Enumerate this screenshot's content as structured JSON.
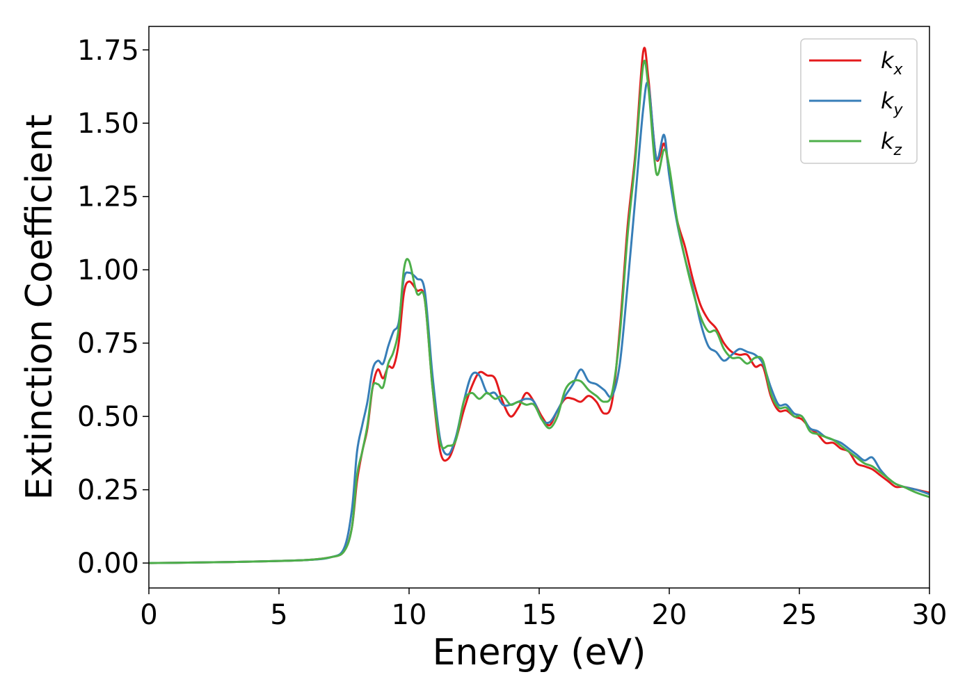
{
  "chart_data": {
    "type": "line",
    "title": "",
    "xlabel": "Energy (eV)",
    "ylabel": "Extinction Coefficient",
    "xlim": [
      0,
      30
    ],
    "ylim": [
      -0.085,
      1.83
    ],
    "x_ticks": [
      0,
      5,
      10,
      15,
      20,
      25,
      30
    ],
    "x_tick_labels": [
      "0",
      "5",
      "10",
      "15",
      "20",
      "25",
      "30"
    ],
    "y_ticks": [
      0.0,
      0.25,
      0.5,
      0.75,
      1.0,
      1.25,
      1.5,
      1.75
    ],
    "y_tick_labels": [
      "0.00",
      "0.25",
      "0.50",
      "0.75",
      "1.00",
      "1.25",
      "1.50",
      "1.75"
    ],
    "grid": false,
    "legend_position": "top-right",
    "series": [
      {
        "name": "k_x",
        "legend_main": "k",
        "legend_sub": "x",
        "color": "#e41a1c",
        "points": [
          [
            0,
            0
          ],
          [
            2,
            0.002
          ],
          [
            4,
            0.005
          ],
          [
            6,
            0.01
          ],
          [
            7,
            0.02
          ],
          [
            7.5,
            0.04
          ],
          [
            7.8,
            0.12
          ],
          [
            8,
            0.28
          ],
          [
            8.2,
            0.38
          ],
          [
            8.4,
            0.46
          ],
          [
            8.6,
            0.6
          ],
          [
            8.8,
            0.66
          ],
          [
            9,
            0.63
          ],
          [
            9.2,
            0.67
          ],
          [
            9.4,
            0.67
          ],
          [
            9.6,
            0.75
          ],
          [
            9.8,
            0.92
          ],
          [
            10,
            0.96
          ],
          [
            10.3,
            0.93
          ],
          [
            10.6,
            0.9
          ],
          [
            10.9,
            0.6
          ],
          [
            11.2,
            0.38
          ],
          [
            11.5,
            0.355
          ],
          [
            11.8,
            0.42
          ],
          [
            12.1,
            0.52
          ],
          [
            12.4,
            0.6
          ],
          [
            12.7,
            0.65
          ],
          [
            13,
            0.64
          ],
          [
            13.3,
            0.63
          ],
          [
            13.6,
            0.55
          ],
          [
            13.9,
            0.5
          ],
          [
            14.2,
            0.53
          ],
          [
            14.5,
            0.58
          ],
          [
            14.8,
            0.55
          ],
          [
            15.1,
            0.5
          ],
          [
            15.4,
            0.47
          ],
          [
            15.7,
            0.52
          ],
          [
            16,
            0.56
          ],
          [
            16.3,
            0.56
          ],
          [
            16.6,
            0.55
          ],
          [
            16.9,
            0.57
          ],
          [
            17.2,
            0.55
          ],
          [
            17.5,
            0.51
          ],
          [
            17.8,
            0.55
          ],
          [
            18.1,
            0.8
          ],
          [
            18.4,
            1.15
          ],
          [
            18.7,
            1.4
          ],
          [
            19,
            1.745
          ],
          [
            19.2,
            1.65
          ],
          [
            19.5,
            1.38
          ],
          [
            19.8,
            1.43
          ],
          [
            20,
            1.33
          ],
          [
            20.3,
            1.17
          ],
          [
            20.6,
            1.08
          ],
          [
            20.9,
            0.97
          ],
          [
            21.2,
            0.88
          ],
          [
            21.5,
            0.83
          ],
          [
            21.8,
            0.8
          ],
          [
            22.1,
            0.75
          ],
          [
            22.4,
            0.72
          ],
          [
            22.7,
            0.71
          ],
          [
            23,
            0.71
          ],
          [
            23.3,
            0.67
          ],
          [
            23.6,
            0.67
          ],
          [
            23.9,
            0.57
          ],
          [
            24.2,
            0.52
          ],
          [
            24.5,
            0.52
          ],
          [
            24.8,
            0.5
          ],
          [
            25.1,
            0.49
          ],
          [
            25.4,
            0.46
          ],
          [
            25.7,
            0.44
          ],
          [
            26,
            0.41
          ],
          [
            26.3,
            0.41
          ],
          [
            26.6,
            0.39
          ],
          [
            26.9,
            0.38
          ],
          [
            27.2,
            0.34
          ],
          [
            27.5,
            0.33
          ],
          [
            27.8,
            0.32
          ],
          [
            28.1,
            0.3
          ],
          [
            28.4,
            0.28
          ],
          [
            28.7,
            0.26
          ],
          [
            29,
            0.26
          ],
          [
            29.5,
            0.25
          ],
          [
            30,
            0.24
          ]
        ]
      },
      {
        "name": "k_y",
        "legend_main": "k",
        "legend_sub": "y",
        "color": "#377eb8",
        "points": [
          [
            0,
            0
          ],
          [
            2,
            0.002
          ],
          [
            4,
            0.005
          ],
          [
            6,
            0.01
          ],
          [
            7,
            0.02
          ],
          [
            7.5,
            0.05
          ],
          [
            7.8,
            0.18
          ],
          [
            8,
            0.38
          ],
          [
            8.2,
            0.47
          ],
          [
            8.4,
            0.55
          ],
          [
            8.6,
            0.66
          ],
          [
            8.8,
            0.69
          ],
          [
            9,
            0.68
          ],
          [
            9.2,
            0.74
          ],
          [
            9.4,
            0.79
          ],
          [
            9.6,
            0.82
          ],
          [
            9.8,
            0.97
          ],
          [
            10,
            0.99
          ],
          [
            10.3,
            0.97
          ],
          [
            10.6,
            0.93
          ],
          [
            10.9,
            0.64
          ],
          [
            11.2,
            0.42
          ],
          [
            11.5,
            0.37
          ],
          [
            11.8,
            0.43
          ],
          [
            12.1,
            0.55
          ],
          [
            12.4,
            0.64
          ],
          [
            12.7,
            0.64
          ],
          [
            13,
            0.58
          ],
          [
            13.3,
            0.58
          ],
          [
            13.6,
            0.54
          ],
          [
            13.9,
            0.54
          ],
          [
            14.2,
            0.55
          ],
          [
            14.5,
            0.56
          ],
          [
            14.8,
            0.55
          ],
          [
            15.1,
            0.49
          ],
          [
            15.4,
            0.48
          ],
          [
            15.7,
            0.52
          ],
          [
            16,
            0.57
          ],
          [
            16.3,
            0.61
          ],
          [
            16.6,
            0.66
          ],
          [
            16.9,
            0.62
          ],
          [
            17.2,
            0.61
          ],
          [
            17.5,
            0.59
          ],
          [
            17.8,
            0.57
          ],
          [
            18.1,
            0.68
          ],
          [
            18.4,
            0.95
          ],
          [
            18.7,
            1.25
          ],
          [
            19,
            1.55
          ],
          [
            19.2,
            1.63
          ],
          [
            19.5,
            1.38
          ],
          [
            19.8,
            1.46
          ],
          [
            20,
            1.32
          ],
          [
            20.3,
            1.16
          ],
          [
            20.6,
            1.04
          ],
          [
            20.9,
            0.94
          ],
          [
            21.2,
            0.82
          ],
          [
            21.5,
            0.74
          ],
          [
            21.8,
            0.72
          ],
          [
            22.1,
            0.69
          ],
          [
            22.4,
            0.71
          ],
          [
            22.7,
            0.73
          ],
          [
            23,
            0.72
          ],
          [
            23.3,
            0.71
          ],
          [
            23.6,
            0.68
          ],
          [
            23.9,
            0.6
          ],
          [
            24.2,
            0.54
          ],
          [
            24.5,
            0.54
          ],
          [
            24.8,
            0.51
          ],
          [
            25.1,
            0.5
          ],
          [
            25.4,
            0.46
          ],
          [
            25.7,
            0.45
          ],
          [
            26,
            0.43
          ],
          [
            26.3,
            0.42
          ],
          [
            26.6,
            0.41
          ],
          [
            26.9,
            0.39
          ],
          [
            27.2,
            0.37
          ],
          [
            27.5,
            0.35
          ],
          [
            27.8,
            0.36
          ],
          [
            28.1,
            0.32
          ],
          [
            28.4,
            0.29
          ],
          [
            28.7,
            0.27
          ],
          [
            29,
            0.26
          ],
          [
            29.5,
            0.25
          ],
          [
            30,
            0.235
          ]
        ]
      },
      {
        "name": "k_z",
        "legend_main": "k",
        "legend_sub": "z",
        "color": "#4daf4a",
        "points": [
          [
            0,
            0
          ],
          [
            2,
            0.002
          ],
          [
            4,
            0.005
          ],
          [
            6,
            0.01
          ],
          [
            7,
            0.02
          ],
          [
            7.5,
            0.04
          ],
          [
            7.8,
            0.12
          ],
          [
            8,
            0.3
          ],
          [
            8.2,
            0.38
          ],
          [
            8.4,
            0.47
          ],
          [
            8.6,
            0.6
          ],
          [
            8.8,
            0.61
          ],
          [
            9,
            0.6
          ],
          [
            9.2,
            0.68
          ],
          [
            9.4,
            0.72
          ],
          [
            9.6,
            0.8
          ],
          [
            9.8,
            1.0
          ],
          [
            10,
            1.03
          ],
          [
            10.3,
            0.92
          ],
          [
            10.6,
            0.9
          ],
          [
            10.9,
            0.6
          ],
          [
            11.2,
            0.41
          ],
          [
            11.5,
            0.4
          ],
          [
            11.8,
            0.42
          ],
          [
            12.1,
            0.55
          ],
          [
            12.4,
            0.58
          ],
          [
            12.7,
            0.56
          ],
          [
            13,
            0.58
          ],
          [
            13.3,
            0.56
          ],
          [
            13.6,
            0.57
          ],
          [
            13.9,
            0.54
          ],
          [
            14.2,
            0.55
          ],
          [
            14.5,
            0.54
          ],
          [
            14.8,
            0.54
          ],
          [
            15.1,
            0.49
          ],
          [
            15.4,
            0.46
          ],
          [
            15.7,
            0.5
          ],
          [
            16,
            0.59
          ],
          [
            16.3,
            0.62
          ],
          [
            16.6,
            0.62
          ],
          [
            16.9,
            0.59
          ],
          [
            17.2,
            0.57
          ],
          [
            17.5,
            0.55
          ],
          [
            17.8,
            0.58
          ],
          [
            18.1,
            0.78
          ],
          [
            18.4,
            1.12
          ],
          [
            18.7,
            1.38
          ],
          [
            19,
            1.7
          ],
          [
            19.2,
            1.62
          ],
          [
            19.5,
            1.33
          ],
          [
            19.8,
            1.41
          ],
          [
            20,
            1.35
          ],
          [
            20.3,
            1.17
          ],
          [
            20.6,
            1.04
          ],
          [
            20.9,
            0.93
          ],
          [
            21.2,
            0.84
          ],
          [
            21.5,
            0.79
          ],
          [
            21.8,
            0.79
          ],
          [
            22.1,
            0.73
          ],
          [
            22.4,
            0.7
          ],
          [
            22.7,
            0.7
          ],
          [
            23,
            0.68
          ],
          [
            23.3,
            0.7
          ],
          [
            23.6,
            0.69
          ],
          [
            23.9,
            0.58
          ],
          [
            24.2,
            0.53
          ],
          [
            24.5,
            0.53
          ],
          [
            24.8,
            0.5
          ],
          [
            25.1,
            0.5
          ],
          [
            25.4,
            0.45
          ],
          [
            25.7,
            0.44
          ],
          [
            26,
            0.43
          ],
          [
            26.3,
            0.42
          ],
          [
            26.6,
            0.4
          ],
          [
            26.9,
            0.38
          ],
          [
            27.2,
            0.36
          ],
          [
            27.5,
            0.34
          ],
          [
            27.8,
            0.33
          ],
          [
            28.1,
            0.31
          ],
          [
            28.4,
            0.29
          ],
          [
            28.7,
            0.27
          ],
          [
            29,
            0.26
          ],
          [
            29.5,
            0.24
          ],
          [
            30,
            0.225
          ]
        ]
      }
    ]
  }
}
